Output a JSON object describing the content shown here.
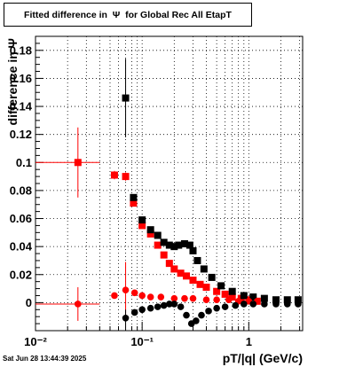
{
  "title": "Fitted difference in  Ψ  for Global Rec All EtapT",
  "timestamp": "Sat Jun 28 13:44:39 2025",
  "chart_data": {
    "type": "scatter",
    "title": "Fitted difference in  Ψ  for Global Rec All EtapT",
    "xlabel": "pT/|q| (GeV/c)",
    "ylabel": "difference in Ψ",
    "xscale": "log",
    "xlim": [
      0.01,
      3.2
    ],
    "ylim": [
      -0.02,
      0.19
    ],
    "grid": true,
    "x_tick_labels": [
      "10⁻²",
      "10⁻¹",
      "1"
    ],
    "y_tick_labels": [
      "0",
      "0.02",
      "0.04",
      "0.06",
      "0.08",
      "0.1",
      "0.12",
      "0.14",
      "0.16",
      "0.18"
    ],
    "series": [
      {
        "marker": "square",
        "color": "#ff0000",
        "points": [
          {
            "x": 0.025,
            "y": 0.1,
            "xerr": [
              0.015,
              0.015
            ],
            "yerr": 0.025
          },
          {
            "x": 0.055,
            "y": 0.091,
            "yerr": 0.003
          },
          {
            "x": 0.07,
            "y": 0.09,
            "yerr": 0.003
          },
          {
            "x": 0.083,
            "y": 0.071
          },
          {
            "x": 0.1,
            "y": 0.055
          },
          {
            "x": 0.12,
            "y": 0.049
          },
          {
            "x": 0.14,
            "y": 0.041
          },
          {
            "x": 0.16,
            "y": 0.034
          },
          {
            "x": 0.18,
            "y": 0.028
          },
          {
            "x": 0.2,
            "y": 0.024
          },
          {
            "x": 0.23,
            "y": 0.021
          },
          {
            "x": 0.26,
            "y": 0.019
          },
          {
            "x": 0.3,
            "y": 0.016
          },
          {
            "x": 0.35,
            "y": 0.013
          },
          {
            "x": 0.4,
            "y": 0.011
          },
          {
            "x": 0.5,
            "y": 0.008
          },
          {
            "x": 0.6,
            "y": 0.006
          },
          {
            "x": 0.7,
            "y": 0.004
          },
          {
            "x": 0.85,
            "y": 0.003
          },
          {
            "x": 1.0,
            "y": 0.002
          },
          {
            "x": 1.2,
            "y": 0.001
          }
        ]
      },
      {
        "marker": "square",
        "color": "#000000",
        "points": [
          {
            "x": 0.07,
            "y": 0.146,
            "yerr": 0.028
          },
          {
            "x": 0.083,
            "y": 0.075
          },
          {
            "x": 0.1,
            "y": 0.059
          },
          {
            "x": 0.12,
            "y": 0.052
          },
          {
            "x": 0.14,
            "y": 0.048
          },
          {
            "x": 0.16,
            "y": 0.043
          },
          {
            "x": 0.18,
            "y": 0.041
          },
          {
            "x": 0.2,
            "y": 0.04
          },
          {
            "x": 0.22,
            "y": 0.041
          },
          {
            "x": 0.25,
            "y": 0.042
          },
          {
            "x": 0.28,
            "y": 0.041
          },
          {
            "x": 0.3,
            "y": 0.037
          },
          {
            "x": 0.33,
            "y": 0.03
          },
          {
            "x": 0.38,
            "y": 0.024
          },
          {
            "x": 0.45,
            "y": 0.018
          },
          {
            "x": 0.55,
            "y": 0.012
          },
          {
            "x": 0.7,
            "y": 0.008
          },
          {
            "x": 0.9,
            "y": 0.005
          },
          {
            "x": 1.1,
            "y": 0.004
          },
          {
            "x": 1.4,
            "y": 0.003
          },
          {
            "x": 1.8,
            "y": 0.002
          },
          {
            "x": 2.3,
            "y": 0.002
          },
          {
            "x": 2.9,
            "y": 0.002
          }
        ]
      },
      {
        "marker": "circle",
        "color": "#ff0000",
        "points": [
          {
            "x": 0.025,
            "y": -0.001,
            "xerr": [
              0.015,
              0.015
            ],
            "yerr": 0.012
          },
          {
            "x": 0.055,
            "y": 0.005
          },
          {
            "x": 0.07,
            "y": 0.009,
            "yerr": 0.02
          },
          {
            "x": 0.085,
            "y": 0.007
          },
          {
            "x": 0.1,
            "y": 0.005
          },
          {
            "x": 0.12,
            "y": 0.004
          },
          {
            "x": 0.15,
            "y": 0.004
          },
          {
            "x": 0.2,
            "y": 0.003
          },
          {
            "x": 0.25,
            "y": 0.003
          },
          {
            "x": 0.3,
            "y": 0.003
          },
          {
            "x": 0.4,
            "y": 0.002
          },
          {
            "x": 0.5,
            "y": 0.002
          },
          {
            "x": 0.65,
            "y": 0.002
          },
          {
            "x": 0.8,
            "y": 0.001
          },
          {
            "x": 1.0,
            "y": 0.001
          },
          {
            "x": 1.2,
            "y": 0.001
          }
        ]
      },
      {
        "marker": "circle",
        "color": "#000000",
        "points": [
          {
            "x": 0.07,
            "y": -0.011,
            "yerr": 0.006
          },
          {
            "x": 0.085,
            "y": -0.007
          },
          {
            "x": 0.1,
            "y": -0.005
          },
          {
            "x": 0.12,
            "y": -0.004
          },
          {
            "x": 0.14,
            "y": -0.003
          },
          {
            "x": 0.16,
            "y": -0.002
          },
          {
            "x": 0.18,
            "y": -0.001
          },
          {
            "x": 0.2,
            "y": -0.001
          },
          {
            "x": 0.23,
            "y": -0.003
          },
          {
            "x": 0.26,
            "y": -0.009
          },
          {
            "x": 0.29,
            "y": -0.015
          },
          {
            "x": 0.32,
            "y": -0.013
          },
          {
            "x": 0.36,
            "y": -0.009
          },
          {
            "x": 0.42,
            "y": -0.006
          },
          {
            "x": 0.5,
            "y": -0.004
          },
          {
            "x": 0.6,
            "y": -0.003
          },
          {
            "x": 0.75,
            "y": -0.002
          },
          {
            "x": 0.9,
            "y": -0.001
          },
          {
            "x": 1.1,
            "y": -0.001
          },
          {
            "x": 1.4,
            "y": -0.001
          },
          {
            "x": 1.8,
            "y": -0.001
          },
          {
            "x": 2.3,
            "y": -0.001
          },
          {
            "x": 2.9,
            "y": -0.001
          }
        ]
      }
    ]
  }
}
